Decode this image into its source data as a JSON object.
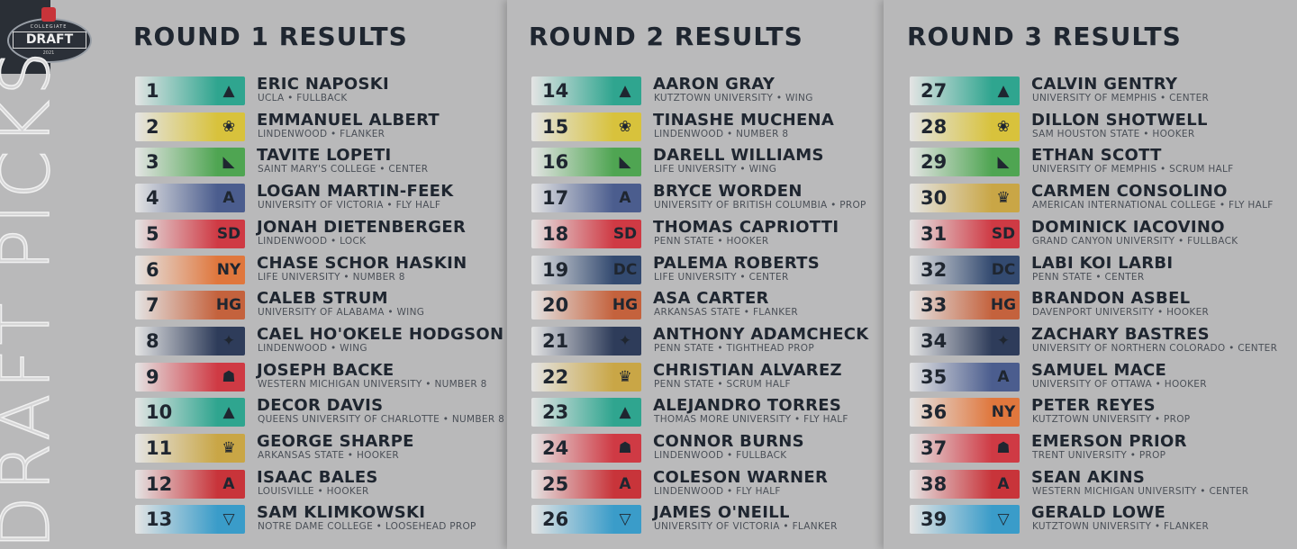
{
  "logo": {
    "top": "COLLEGIATE",
    "main": "DRAFT",
    "year": "2021"
  },
  "side_title": "DRAFT PICKS",
  "rounds": [
    {
      "title": "ROUND 1 RESULTS",
      "picks": [
        {
          "pick": "1",
          "name": "ERIC NAPOSKI",
          "school": "UCLA",
          "position": "FULLBACK",
          "team_color": "#2fa58f",
          "logo_icon": "wolf-icon"
        },
        {
          "pick": "2",
          "name": "EMMANUEL ALBERT",
          "school": "LINDENWOOD",
          "position": "FLANKER",
          "team_color": "#d8c23c",
          "logo_icon": "lion-icon"
        },
        {
          "pick": "3",
          "name": "TAVITE LOPETI",
          "school": "SAINT MARY'S COLLEGE",
          "position": "CENTER",
          "team_color": "#4fa552",
          "logo_icon": "shark-icon"
        },
        {
          "pick": "4",
          "name": "LOGAN MARTIN-FEEK",
          "school": "UNIVERSITY OF VICTORIA",
          "position": "FLY HALF",
          "team_color": "#4b5d8e",
          "logo_icon": "tower-icon"
        },
        {
          "pick": "5",
          "name": "JONAH DIETENBERGER",
          "school": "LINDENWOOD",
          "position": "LOCK",
          "team_color": "#cf3a44",
          "logo_icon": "sd-icon"
        },
        {
          "pick": "6",
          "name": "CHASE SCHOR HASKIN",
          "school": "LIFE UNIVERSITY",
          "position": "NUMBER 8",
          "team_color": "#e0773d",
          "logo_icon": "ny-icon"
        },
        {
          "pick": "7",
          "name": "CALEB STRUM",
          "school": "UNIVERSITY OF ALABAMA",
          "position": "WING",
          "team_color": "#c4623d",
          "logo_icon": "hg-icon"
        },
        {
          "pick": "8",
          "name": "CAEL HO'OKELE HODGSON",
          "school": "LINDENWOOD",
          "position": "WING",
          "team_color": "#2e3c5a",
          "logo_icon": "thunderbird-icon"
        },
        {
          "pick": "9",
          "name": "JOSEPH BACKE",
          "school": "WESTERN MICHIGAN UNIVERSITY",
          "position": "NUMBER 8",
          "team_color": "#cf3a44",
          "logo_icon": "warrior-icon"
        },
        {
          "pick": "10",
          "name": "DECOR DAVIS",
          "school": "QUEENS UNIVERSITY OF CHARLOTTE",
          "position": "NUMBER 8",
          "team_color": "#2fa58f",
          "logo_icon": "wolf-icon"
        },
        {
          "pick": "11",
          "name": "GEORGE SHARPE",
          "school": "ARKANSAS STATE",
          "position": "HOOKER",
          "team_color": "#c9a646",
          "logo_icon": "crown-icon"
        },
        {
          "pick": "12",
          "name": "ISAAC BALES",
          "school": "LOUISVILLE",
          "position": "HOOKER",
          "team_color": "#c8343a",
          "logo_icon": "a-icon"
        },
        {
          "pick": "13",
          "name": "SAM KLIMKOWSKI",
          "school": "NOTRE DAME COLLEGE",
          "position": "LOOSEHEAD PROP",
          "team_color": "#3a9cc9",
          "logo_icon": "shield-g-icon"
        }
      ]
    },
    {
      "title": "ROUND 2 RESULTS",
      "picks": [
        {
          "pick": "14",
          "name": "AARON GRAY",
          "school": "KUTZTOWN UNIVERSITY",
          "position": "WING",
          "team_color": "#2fa58f",
          "logo_icon": "wolf-icon"
        },
        {
          "pick": "15",
          "name": "TINASHE MUCHENA",
          "school": "LINDENWOOD",
          "position": "NUMBER 8",
          "team_color": "#d8c23c",
          "logo_icon": "lion-icon"
        },
        {
          "pick": "16",
          "name": "DARELL WILLIAMS",
          "school": "LIFE UNIVERSITY",
          "position": "WING",
          "team_color": "#4fa552",
          "logo_icon": "shark-icon"
        },
        {
          "pick": "17",
          "name": "BRYCE WORDEN",
          "school": "UNIVERSITY OF BRITISH COLUMBIA",
          "position": "PROP",
          "team_color": "#4b5d8e",
          "logo_icon": "tower-icon"
        },
        {
          "pick": "18",
          "name": "THOMAS CAPRIOTTI",
          "school": "PENN STATE",
          "position": "HOOKER",
          "team_color": "#cf3a44",
          "logo_icon": "sd-icon"
        },
        {
          "pick": "19",
          "name": "PALEMA ROBERTS",
          "school": "LIFE UNIVERSITY",
          "position": "CENTER",
          "team_color": "#334a70",
          "logo_icon": "dc-icon"
        },
        {
          "pick": "20",
          "name": "ASA CARTER",
          "school": "ARKANSAS STATE",
          "position": "FLANKER",
          "team_color": "#c4623d",
          "logo_icon": "hg-icon"
        },
        {
          "pick": "21",
          "name": "ANTHONY ADAMCHECK",
          "school": "PENN STATE",
          "position": "TIGHTHEAD PROP",
          "team_color": "#2e3c5a",
          "logo_icon": "thunderbird-icon"
        },
        {
          "pick": "22",
          "name": "CHRISTIAN ALVAREZ",
          "school": "PENN STATE",
          "position": "SCRUM HALF",
          "team_color": "#c9a646",
          "logo_icon": "crown-icon"
        },
        {
          "pick": "23",
          "name": "ALEJANDRO TORRES",
          "school": "THOMAS MORE UNIVERSITY",
          "position": "FLY HALF",
          "team_color": "#2fa58f",
          "logo_icon": "wolf-icon"
        },
        {
          "pick": "24",
          "name": "CONNOR BURNS",
          "school": "LINDENWOOD",
          "position": "FULLBACK",
          "team_color": "#cf3a44",
          "logo_icon": "warrior-icon"
        },
        {
          "pick": "25",
          "name": "COLESON WARNER",
          "school": "LINDENWOOD",
          "position": "FLY HALF",
          "team_color": "#c8343a",
          "logo_icon": "a-icon"
        },
        {
          "pick": "26",
          "name": "JAMES O'NEILL",
          "school": "UNIVERSITY OF VICTORIA",
          "position": "FLANKER",
          "team_color": "#3a9cc9",
          "logo_icon": "shield-g-icon"
        }
      ]
    },
    {
      "title": "ROUND 3 RESULTS",
      "picks": [
        {
          "pick": "27",
          "name": "CALVIN GENTRY",
          "school": "UNIVERSITY OF MEMPHIS",
          "position": "CENTER",
          "team_color": "#2fa58f",
          "logo_icon": "wolf-icon"
        },
        {
          "pick": "28",
          "name": "DILLON SHOTWELL",
          "school": "SAM HOUSTON STATE",
          "position": "HOOKER",
          "team_color": "#d8c23c",
          "logo_icon": "lion-icon"
        },
        {
          "pick": "29",
          "name": "ETHAN SCOTT",
          "school": "UNIVERSITY OF MEMPHIS",
          "position": "SCRUM HALF",
          "team_color": "#4fa552",
          "logo_icon": "shark-icon"
        },
        {
          "pick": "30",
          "name": "CARMEN CONSOLINO",
          "school": "AMERICAN INTERNATIONAL COLLEGE",
          "position": "FLY HALF",
          "team_color": "#c9a646",
          "logo_icon": "crown-icon"
        },
        {
          "pick": "31",
          "name": "DOMINICK IACOVINO",
          "school": "GRAND CANYON UNIVERSITY",
          "position": "FULLBACK",
          "team_color": "#cf3a44",
          "logo_icon": "sd-icon"
        },
        {
          "pick": "32",
          "name": "LABI KOI LARBI",
          "school": "PENN STATE",
          "position": "CENTER",
          "team_color": "#334a70",
          "logo_icon": "dc-icon"
        },
        {
          "pick": "33",
          "name": "BRANDON ASBEL",
          "school": "DAVENPORT UNIVERSITY",
          "position": "HOOKER",
          "team_color": "#c4623d",
          "logo_icon": "hg-icon"
        },
        {
          "pick": "34",
          "name": "ZACHARY BASTRES",
          "school": "UNIVERSITY OF NORTHERN COLORADO",
          "position": "CENTER",
          "team_color": "#2e3c5a",
          "logo_icon": "thunderbird-icon"
        },
        {
          "pick": "35",
          "name": "SAMUEL MACE",
          "school": "UNIVERSITY OF OTTAWA",
          "position": "HOOKER",
          "team_color": "#4b5d8e",
          "logo_icon": "tower-icon"
        },
        {
          "pick": "36",
          "name": "PETER REYES",
          "school": "KUTZTOWN UNIVERSITY",
          "position": "PROP",
          "team_color": "#e0773d",
          "logo_icon": "ny-icon"
        },
        {
          "pick": "37",
          "name": "EMERSON PRIOR",
          "school": "TRENT UNIVERSITY",
          "position": "PROP",
          "team_color": "#cf3a44",
          "logo_icon": "warrior-icon"
        },
        {
          "pick": "38",
          "name": "SEAN AKINS",
          "school": "WESTERN MICHIGAN UNIVERSITY",
          "position": "CENTER",
          "team_color": "#c8343a",
          "logo_icon": "a-icon"
        },
        {
          "pick": "39",
          "name": "GERALD LOWE",
          "school": "KUTZTOWN UNIVERSITY",
          "position": "FLANKER",
          "team_color": "#3a9cc9",
          "logo_icon": "shield-g-icon"
        }
      ]
    }
  ]
}
